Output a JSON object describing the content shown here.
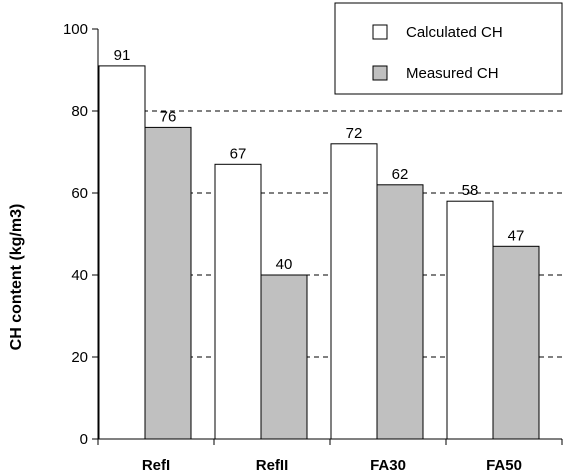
{
  "chart_data": {
    "type": "bar",
    "categories": [
      "RefI",
      "RefII",
      "FA30",
      "FA50"
    ],
    "series": [
      {
        "name": "Calculated CH",
        "values": [
          91,
          67,
          72,
          58
        ],
        "color": "#ffffff"
      },
      {
        "name": "Measured CH",
        "values": [
          76,
          40,
          62,
          47
        ],
        "color": "#c0c0c0"
      }
    ],
    "xlabel": "",
    "ylabel": "CH content (kg/m3)",
    "ylim": [
      0,
      100
    ],
    "yticks": [
      0,
      20,
      40,
      60,
      80,
      100
    ],
    "grid": "horizontal dashed",
    "legend_position": "top-right",
    "data_labels": true
  }
}
